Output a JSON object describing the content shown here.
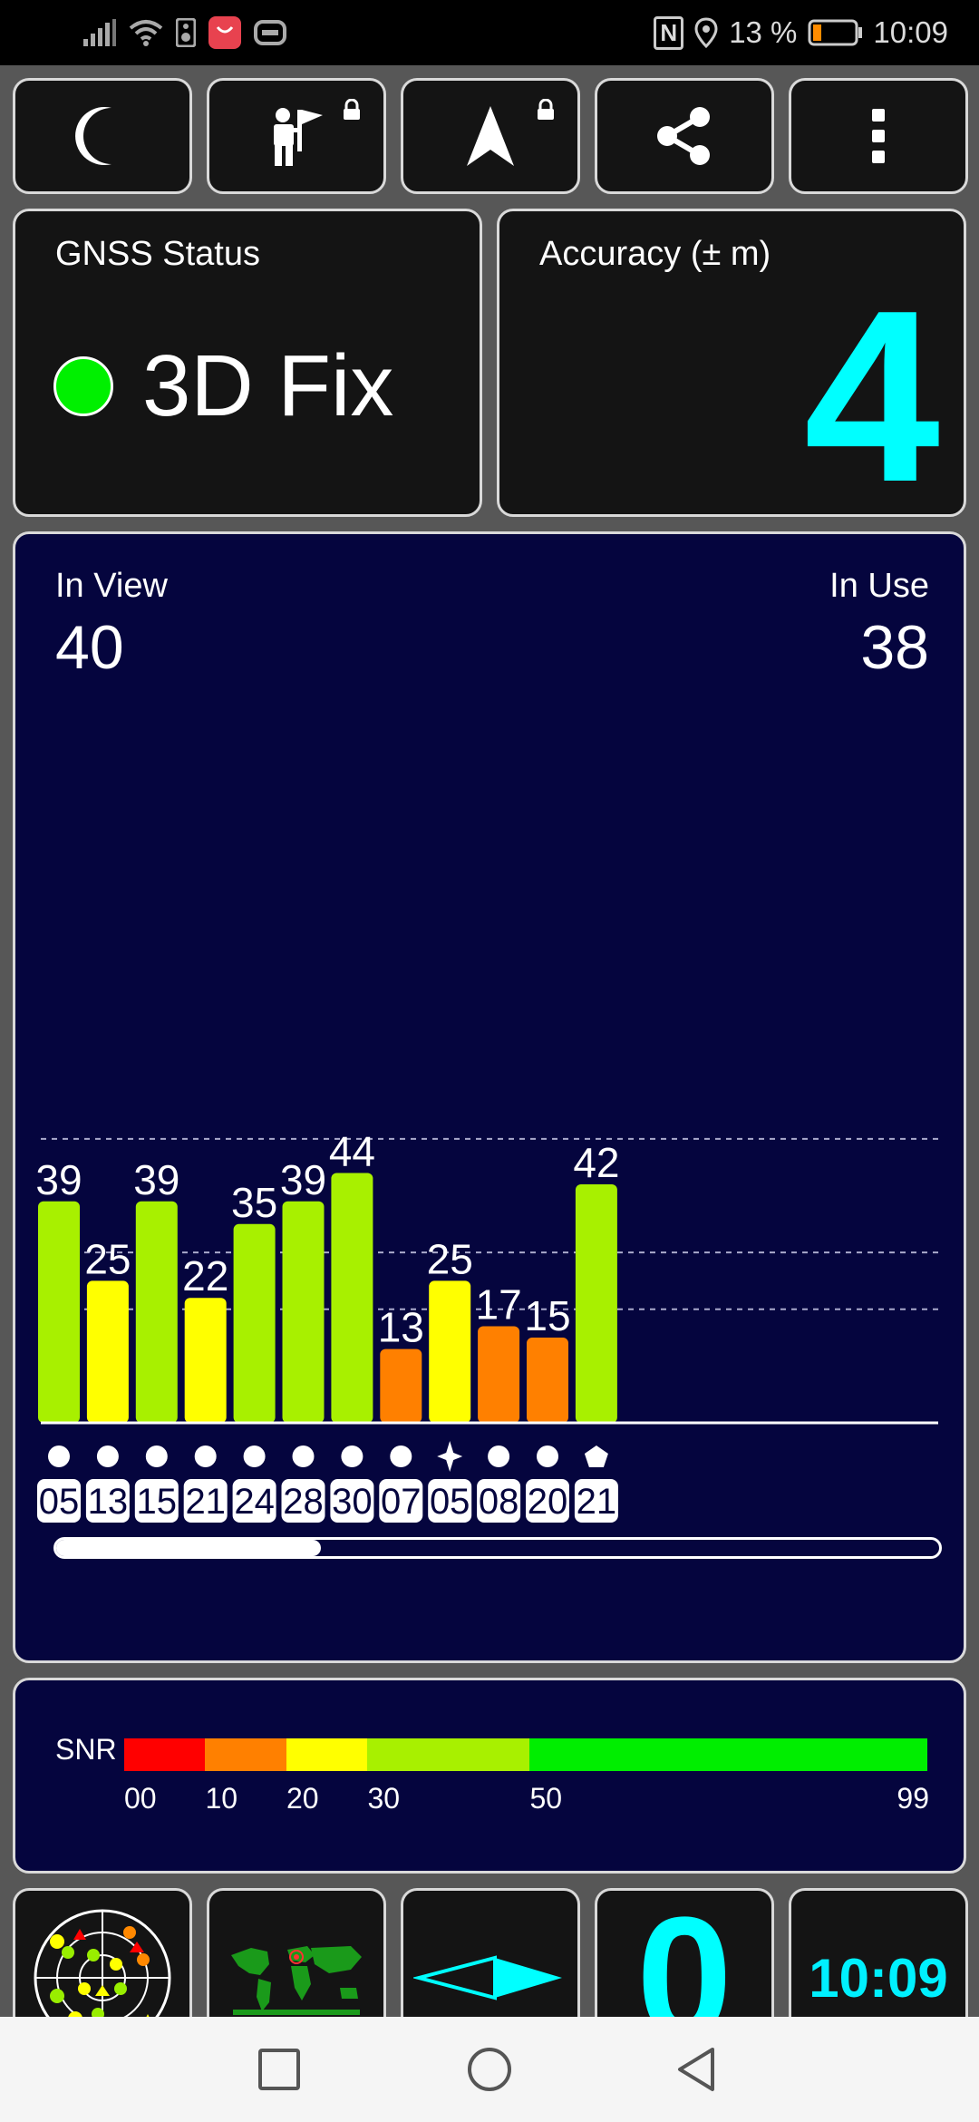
{
  "status_bar": {
    "nfc": "N",
    "battery": "13 %",
    "time": "10:09",
    "app_badge": "HUAWEI"
  },
  "toolbar": {
    "night_mode": "moon-icon",
    "person_flag": "person-flag-icon",
    "navigate": "navigation-arrow-icon",
    "share": "share-icon",
    "more": "more-vert-icon"
  },
  "gnss_status": {
    "title": "GNSS Status",
    "fix": "3D Fix",
    "fix_color": "#00f000"
  },
  "accuracy": {
    "title": "Accuracy (± m)",
    "value": "4",
    "color": "#00ffff"
  },
  "satellites": {
    "in_view_label": "In View",
    "in_view": "40",
    "in_use_label": "In Use",
    "in_use": "38",
    "scroll_fraction": 0.3
  },
  "chart_data": {
    "type": "bar",
    "ylim": [
      0,
      99
    ],
    "categories": [
      "05",
      "13",
      "15",
      "21",
      "24",
      "28",
      "30",
      "07",
      "05",
      "08",
      "20",
      "21"
    ],
    "values": [
      39,
      25,
      39,
      22,
      35,
      39,
      44,
      13,
      25,
      17,
      15,
      42
    ],
    "constellation_symbols": [
      "circle",
      "circle",
      "circle",
      "circle",
      "circle",
      "circle",
      "circle",
      "circle",
      "star",
      "circle",
      "circle",
      "pentagon"
    ],
    "gridlines": [
      20,
      30,
      50
    ]
  },
  "snr_legend": {
    "label": "SNR",
    "ticks": [
      "00",
      "10",
      "20",
      "30",
      "50",
      "99"
    ],
    "segments": [
      {
        "from": 0,
        "to": 10,
        "color": "#ff0000"
      },
      {
        "from": 10,
        "to": 20,
        "color": "#ff8000"
      },
      {
        "from": 20,
        "to": 30,
        "color": "#ffff00"
      },
      {
        "from": 30,
        "to": 50,
        "color": "#a8f000"
      },
      {
        "from": 50,
        "to": 99,
        "color": "#00ee00"
      }
    ]
  },
  "bottom_tiles": {
    "radar": "sky-radar-icon",
    "map": "world-map-icon",
    "compass": "compass-needle-icon",
    "speed": "0",
    "clock": "10:09"
  },
  "nav_bar": {
    "recents": "square-icon",
    "home": "circle-icon",
    "back": "triangle-back-icon"
  }
}
